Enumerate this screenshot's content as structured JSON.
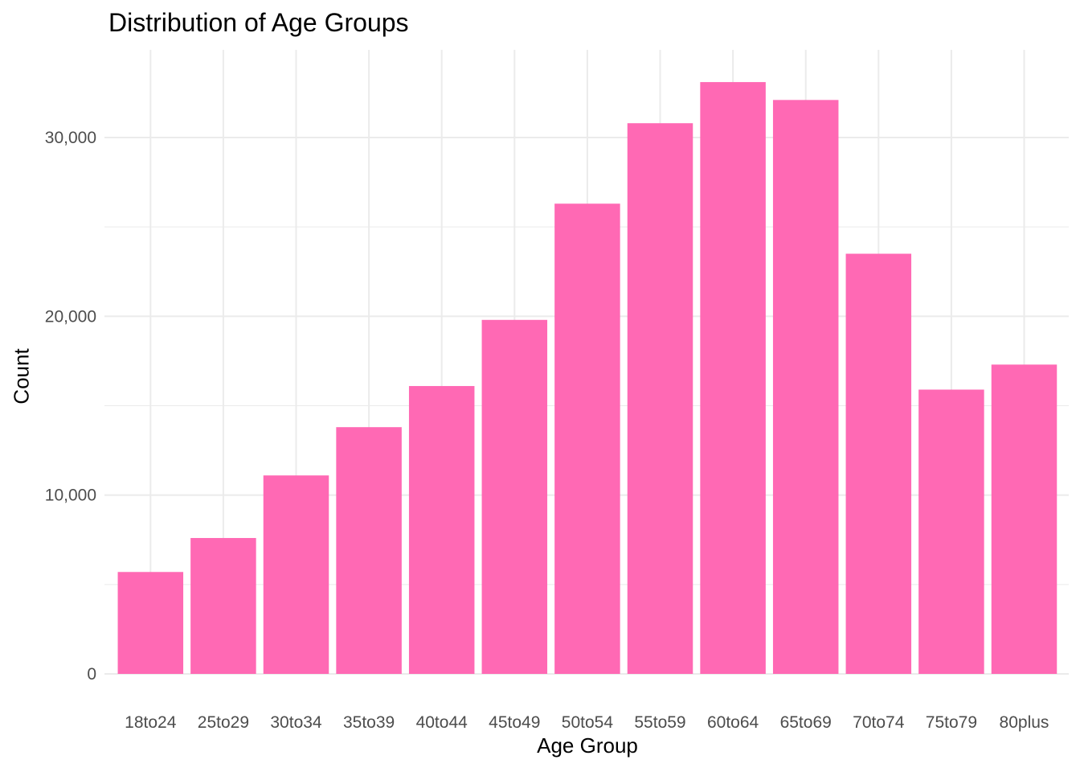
{
  "chart_data": {
    "type": "bar",
    "title": "Distribution of Age Groups",
    "xlabel": "Age Group",
    "ylabel": "Count",
    "categories": [
      "18to24",
      "25to29",
      "30to34",
      "35to39",
      "40to44",
      "45to49",
      "50to54",
      "55to59",
      "60to64",
      "65to69",
      "70to74",
      "75to79",
      "80plus"
    ],
    "values": [
      5700,
      7600,
      11100,
      13800,
      16100,
      19800,
      26300,
      30800,
      33100,
      32100,
      23500,
      15900,
      17300
    ],
    "ylim": [
      0,
      35000
    ],
    "yticks": [
      0,
      10000,
      20000,
      30000
    ],
    "ytick_labels": [
      "0",
      "10,000",
      "20,000",
      "30,000"
    ],
    "grid": true,
    "legend": "none",
    "bar_color": "#ff69b4",
    "grid_color": "#ebebeb",
    "tick_label_color": "#4d4d4d"
  }
}
